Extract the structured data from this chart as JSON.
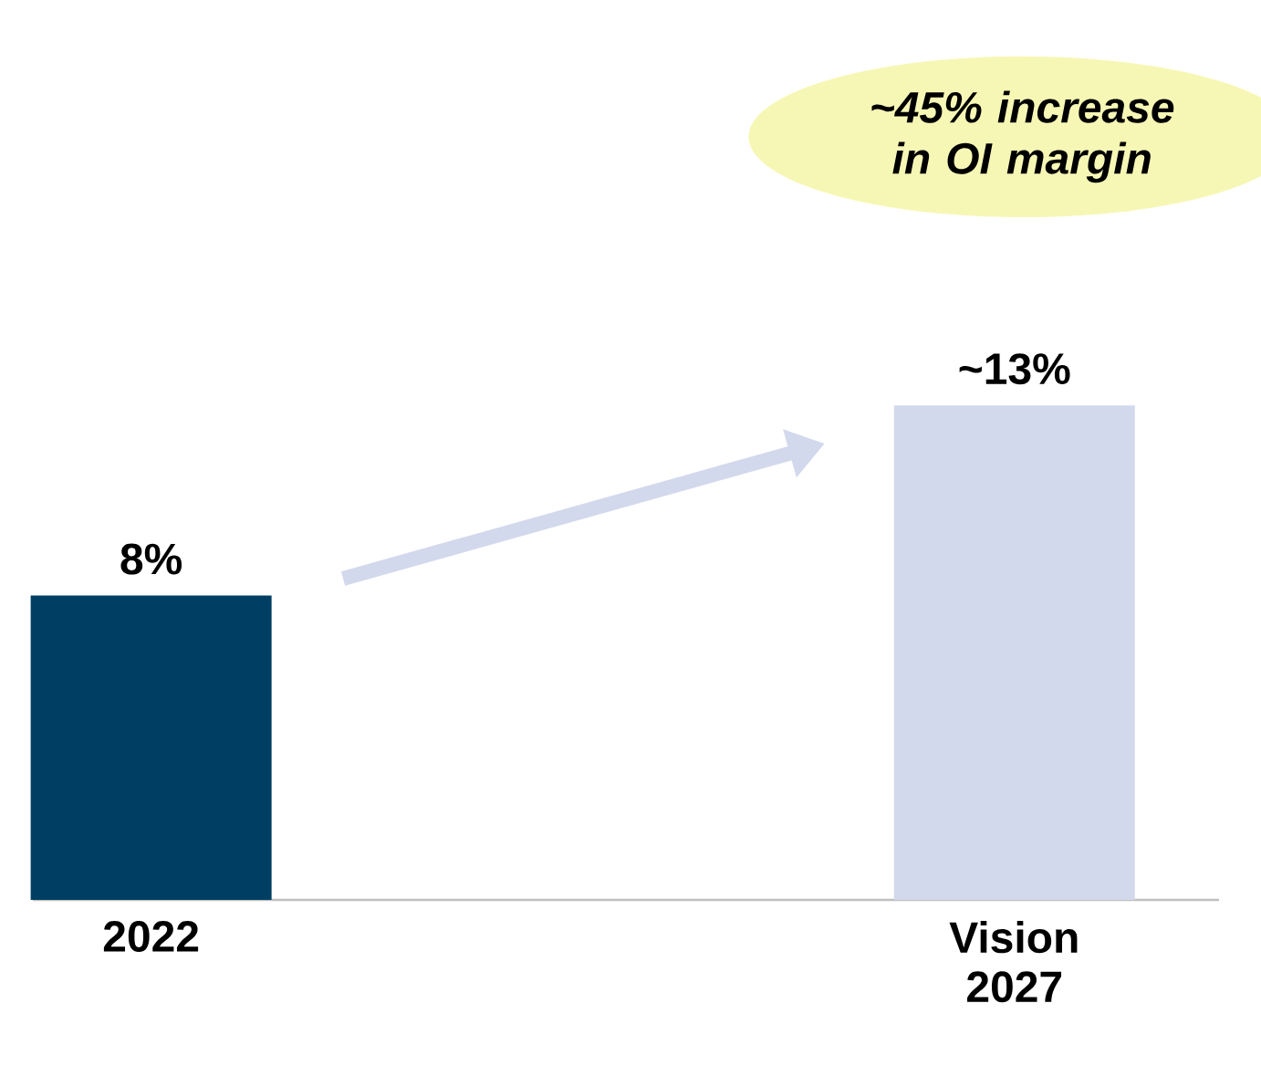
{
  "chart_data": {
    "type": "bar",
    "categories": [
      "2022",
      "Vision 2027"
    ],
    "values": [
      8,
      13
    ],
    "colors": [
      "#003f63",
      "#d3d9ec"
    ],
    "value_labels": [
      "8%",
      "~13%"
    ],
    "annotations": [
      "~45% increase in OI margin"
    ]
  }
}
